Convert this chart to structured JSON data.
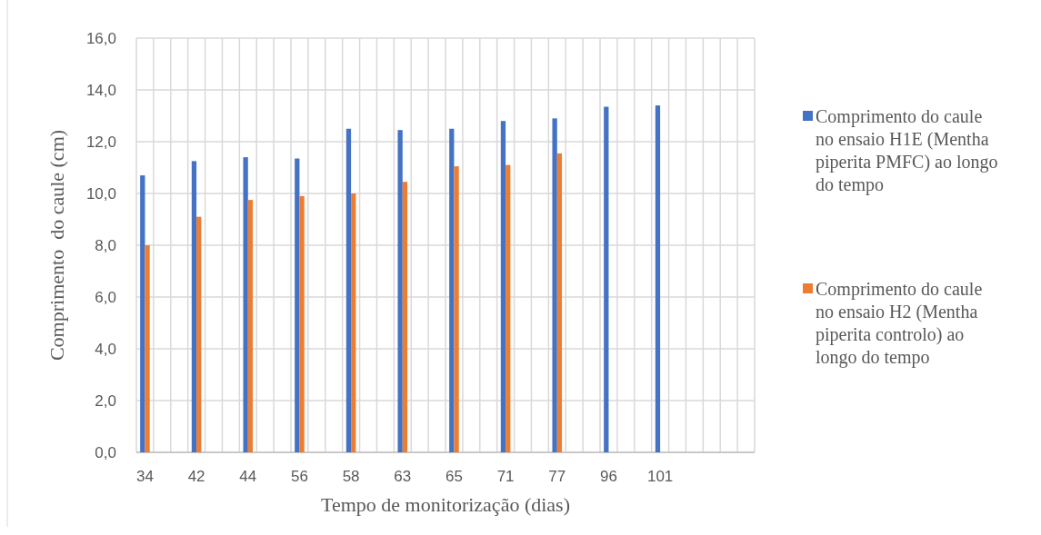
{
  "chart_data": {
    "type": "bar",
    "xlabel": "Tempo de monitorização (dias)",
    "ylabel": "Comprimento  do caule (cm)",
    "categories": [
      "34",
      null,
      null,
      "42",
      null,
      null,
      "44",
      null,
      null,
      "56",
      null,
      null,
      "58",
      null,
      null,
      "63",
      null,
      null,
      "65",
      null,
      null,
      "71",
      null,
      null,
      "77",
      null,
      null,
      "96",
      null,
      null,
      "101",
      null,
      null,
      null,
      null,
      null
    ],
    "series": [
      {
        "name": "Comprimento do caule no ensaio H1E (Mentha piperita PMFC) ao longo do tempo",
        "color": "#4472c4",
        "values": [
          10.7,
          null,
          null,
          11.25,
          null,
          null,
          11.4,
          null,
          null,
          11.35,
          null,
          null,
          12.5,
          null,
          null,
          12.45,
          null,
          null,
          12.5,
          null,
          null,
          12.8,
          null,
          null,
          12.9,
          null,
          null,
          13.35,
          null,
          null,
          13.4,
          null,
          null,
          null,
          null,
          null
        ]
      },
      {
        "name": "Comprimento do caule no ensaio H2 (Mentha piperita controlo) ao longo do tempo",
        "color": "#ed7d31",
        "values": [
          8.0,
          null,
          null,
          9.1,
          null,
          null,
          9.75,
          null,
          null,
          9.9,
          null,
          null,
          10.0,
          null,
          null,
          10.45,
          null,
          null,
          11.05,
          null,
          null,
          11.1,
          null,
          null,
          11.55,
          null,
          null,
          null,
          null,
          null,
          null,
          null,
          null,
          null,
          null,
          null
        ]
      }
    ],
    "ylim": [
      0,
      16
    ],
    "yticks": [
      {
        "value": 0,
        "label": "0,0"
      },
      {
        "value": 2,
        "label": "2,0"
      },
      {
        "value": 4,
        "label": "4,0"
      },
      {
        "value": 6,
        "label": "6,0"
      },
      {
        "value": 8,
        "label": "8,0"
      },
      {
        "value": 10,
        "label": "10,0"
      },
      {
        "value": 12,
        "label": "12,0"
      },
      {
        "value": 14,
        "label": "14,0"
      },
      {
        "value": 16,
        "label": "16,0"
      }
    ],
    "grid": true,
    "legend": "right"
  }
}
